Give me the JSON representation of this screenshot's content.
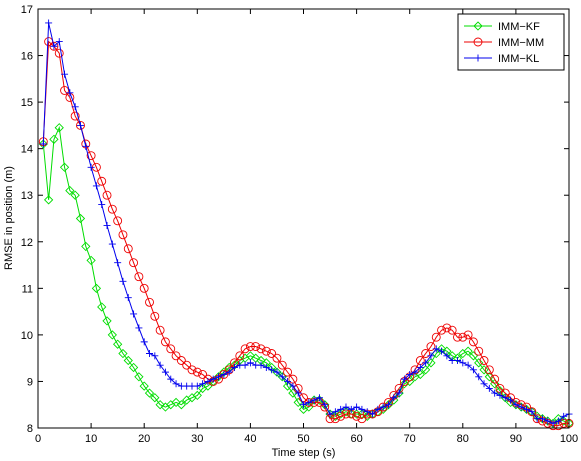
{
  "chart_data": {
    "type": "line",
    "xlabel": "Time step (s)",
    "ylabel": "RMSE in position (m)",
    "xlim": [
      0,
      100
    ],
    "ylim": [
      8,
      17
    ],
    "xticks": [
      0,
      10,
      20,
      30,
      40,
      50,
      60,
      70,
      80,
      90,
      100
    ],
    "yticks": [
      8,
      9,
      10,
      11,
      12,
      13,
      14,
      15,
      16,
      17
    ],
    "grid": false,
    "legend_position": "top-right",
    "x": [
      1,
      2,
      3,
      4,
      5,
      6,
      7,
      8,
      9,
      10,
      11,
      12,
      13,
      14,
      15,
      16,
      17,
      18,
      19,
      20,
      21,
      22,
      23,
      24,
      25,
      26,
      27,
      28,
      29,
      30,
      31,
      32,
      33,
      34,
      35,
      36,
      37,
      38,
      39,
      40,
      41,
      42,
      43,
      44,
      45,
      46,
      47,
      48,
      49,
      50,
      51,
      52,
      53,
      54,
      55,
      56,
      57,
      58,
      59,
      60,
      61,
      62,
      63,
      64,
      65,
      66,
      67,
      68,
      69,
      70,
      71,
      72,
      73,
      74,
      75,
      76,
      77,
      78,
      79,
      80,
      81,
      82,
      83,
      84,
      85,
      86,
      87,
      88,
      89,
      90,
      91,
      92,
      93,
      94,
      95,
      96,
      97,
      98,
      99,
      100
    ],
    "series": [
      {
        "name": "IMM−KF",
        "color": "#00dd00",
        "marker": "diamond",
        "values": [
          14.1,
          12.9,
          14.2,
          14.45,
          13.6,
          13.1,
          13.0,
          12.5,
          11.9,
          11.6,
          11.0,
          10.6,
          10.3,
          10.0,
          9.8,
          9.6,
          9.45,
          9.3,
          9.1,
          8.9,
          8.75,
          8.65,
          8.5,
          8.45,
          8.5,
          8.55,
          8.5,
          8.6,
          8.65,
          8.7,
          8.85,
          8.9,
          9.0,
          9.1,
          9.2,
          9.3,
          9.35,
          9.45,
          9.5,
          9.55,
          9.5,
          9.45,
          9.4,
          9.3,
          9.2,
          9.1,
          8.9,
          8.75,
          8.55,
          8.4,
          8.45,
          8.6,
          8.6,
          8.5,
          8.3,
          8.25,
          8.3,
          8.35,
          8.3,
          8.3,
          8.3,
          8.25,
          8.3,
          8.35,
          8.4,
          8.5,
          8.6,
          8.75,
          8.95,
          9.0,
          9.1,
          9.15,
          9.25,
          9.4,
          9.6,
          9.7,
          9.65,
          9.55,
          9.5,
          9.6,
          9.65,
          9.55,
          9.4,
          9.25,
          9.1,
          8.95,
          8.8,
          8.65,
          8.55,
          8.5,
          8.45,
          8.4,
          8.35,
          8.25,
          8.2,
          8.15,
          8.1,
          8.2,
          8.15,
          8.1
        ]
      },
      {
        "name": "IMM−MM",
        "color": "#ee0000",
        "marker": "circle",
        "values": [
          14.15,
          16.3,
          16.2,
          16.05,
          15.25,
          15.1,
          14.7,
          14.5,
          14.1,
          13.85,
          13.6,
          13.3,
          13.0,
          12.7,
          12.45,
          12.15,
          11.85,
          11.55,
          11.25,
          11.0,
          10.7,
          10.4,
          10.1,
          9.85,
          9.7,
          9.55,
          9.45,
          9.35,
          9.25,
          9.2,
          9.15,
          9.05,
          9.0,
          9.05,
          9.15,
          9.25,
          9.4,
          9.55,
          9.7,
          9.75,
          9.75,
          9.7,
          9.65,
          9.6,
          9.5,
          9.35,
          9.2,
          9.05,
          8.85,
          8.65,
          8.55,
          8.55,
          8.55,
          8.45,
          8.2,
          8.2,
          8.25,
          8.3,
          8.3,
          8.25,
          8.2,
          8.3,
          8.3,
          8.35,
          8.45,
          8.55,
          8.7,
          8.85,
          9.0,
          9.1,
          9.25,
          9.45,
          9.6,
          9.75,
          9.95,
          10.1,
          10.15,
          10.1,
          9.95,
          9.95,
          10.0,
          9.85,
          9.65,
          9.45,
          9.25,
          9.05,
          8.85,
          8.75,
          8.65,
          8.55,
          8.5,
          8.45,
          8.35,
          8.2,
          8.15,
          8.1,
          8.05,
          8.05,
          8.1,
          8.1
        ]
      },
      {
        "name": "IMM−KL",
        "color": "#0000ee",
        "marker": "plus",
        "values": [
          14.1,
          16.7,
          16.2,
          16.3,
          15.6,
          15.2,
          14.9,
          14.5,
          14.05,
          13.6,
          13.2,
          12.8,
          12.35,
          11.95,
          11.55,
          11.15,
          10.8,
          10.45,
          10.15,
          9.85,
          9.6,
          9.55,
          9.35,
          9.2,
          9.05,
          8.95,
          8.9,
          8.9,
          8.9,
          8.9,
          8.95,
          9.0,
          9.05,
          9.1,
          9.15,
          9.2,
          9.3,
          9.35,
          9.35,
          9.4,
          9.35,
          9.35,
          9.3,
          9.25,
          9.2,
          9.1,
          9.0,
          8.9,
          8.75,
          8.5,
          8.55,
          8.6,
          8.65,
          8.5,
          8.3,
          8.35,
          8.4,
          8.45,
          8.4,
          8.45,
          8.4,
          8.35,
          8.3,
          8.4,
          8.45,
          8.5,
          8.65,
          8.75,
          9.05,
          9.15,
          9.2,
          9.3,
          9.4,
          9.55,
          9.7,
          9.65,
          9.55,
          9.45,
          9.45,
          9.4,
          9.35,
          9.25,
          9.1,
          8.95,
          8.85,
          8.75,
          8.7,
          8.65,
          8.6,
          8.5,
          8.45,
          8.4,
          8.35,
          8.2,
          8.2,
          8.15,
          8.1,
          8.15,
          8.25,
          8.3
        ]
      }
    ]
  }
}
